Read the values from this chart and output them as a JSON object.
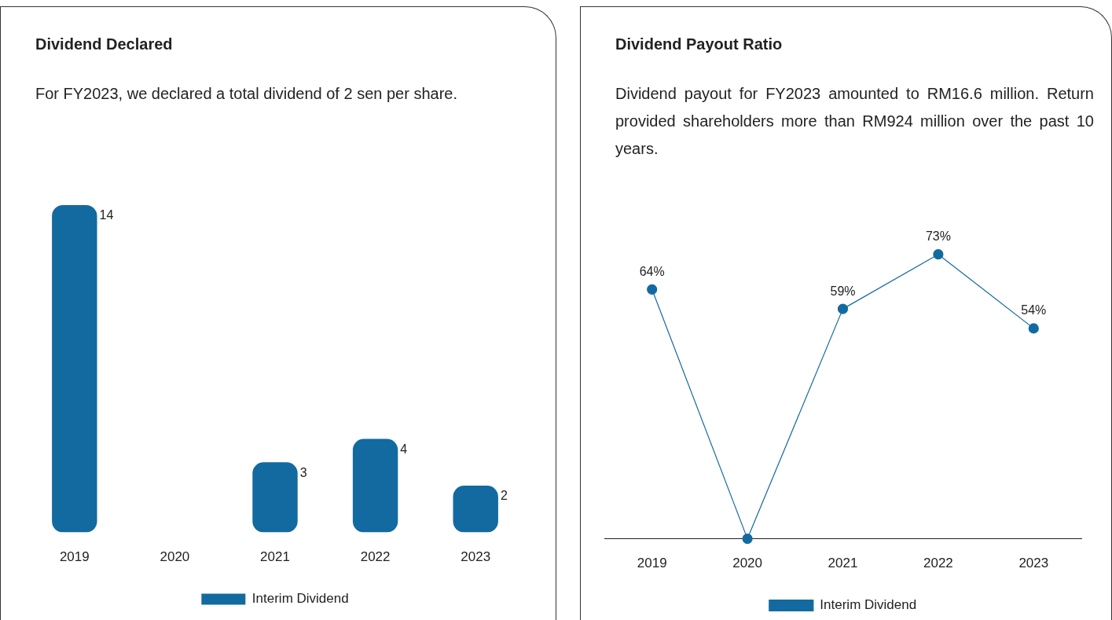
{
  "chart_data": [
    {
      "type": "bar",
      "title": "Dividend Declared",
      "subtitle": "For FY2023, we declared a total dividend of 2 sen per share.",
      "categories": [
        "2019",
        "2020",
        "2021",
        "2022",
        "2023"
      ],
      "series": [
        {
          "name": "Interim Dividend",
          "color": "#136aa0",
          "values": [
            14,
            0,
            3,
            4,
            2
          ],
          "value_labels": [
            "14",
            null,
            "3",
            "4",
            "2"
          ]
        }
      ],
      "legend": "bottom",
      "grid": false,
      "tick_labels": "x"
    },
    {
      "type": "line",
      "title": "Dividend Payout Ratio",
      "subtitle": "Dividend payout for FY2023 amounted to RM16.6 million. Return provided shareholders more than RM924 million over the past 10 years.",
      "categories": [
        "2019",
        "2020",
        "2021",
        "2022",
        "2023"
      ],
      "series": [
        {
          "name": "Interim Dividend",
          "color": "#136aa0",
          "values": [
            64,
            0,
            59,
            73,
            54
          ],
          "value_labels": [
            "64%",
            null,
            "59%",
            "73%",
            "54%"
          ]
        }
      ],
      "legend": "bottom",
      "grid": false,
      "tick_labels": "x",
      "marker": "circle",
      "line_style": "solid"
    }
  ]
}
